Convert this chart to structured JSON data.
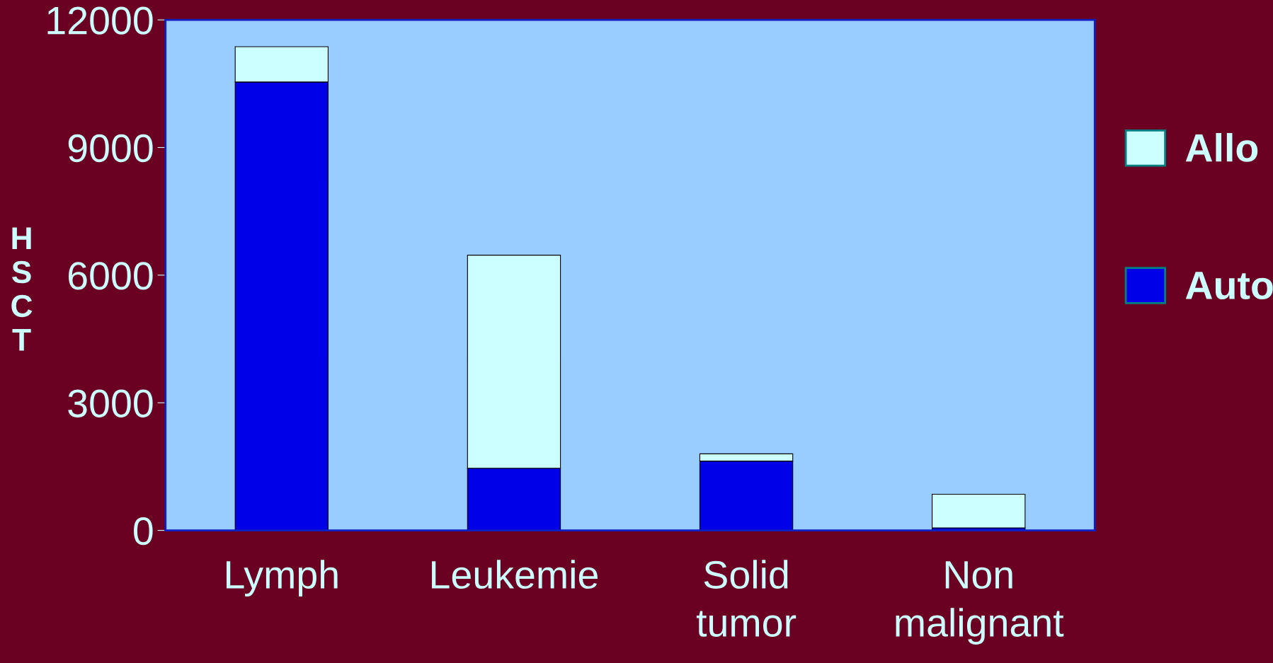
{
  "chart_data": {
    "type": "bar",
    "stacked": true,
    "ylabel": "HSCT",
    "categories": [
      "Lymph",
      "Leukemie",
      "Solid\ntumor",
      "Non\nmalignant"
    ],
    "series": [
      {
        "name": "Auto",
        "color": "#0000e8",
        "values": [
          10540,
          1460,
          1630,
          60
        ]
      },
      {
        "name": "Allo",
        "color": "#ccffff",
        "values": [
          830,
          5010,
          170,
          790
        ]
      }
    ],
    "ylim": [
      0,
      12000
    ],
    "yticks": [
      0,
      3000,
      6000,
      9000,
      12000
    ],
    "grid": false,
    "legend": "right"
  }
}
